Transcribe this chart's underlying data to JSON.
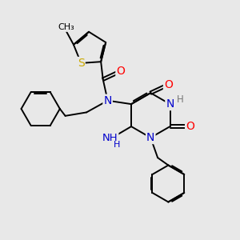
{
  "background_color": "#e8e8e8",
  "bond_color": "#000000",
  "atom_colors": {
    "N": "#0000cc",
    "O": "#ff0000",
    "S": "#ccaa00",
    "H": "#777777",
    "C": "#000000"
  }
}
